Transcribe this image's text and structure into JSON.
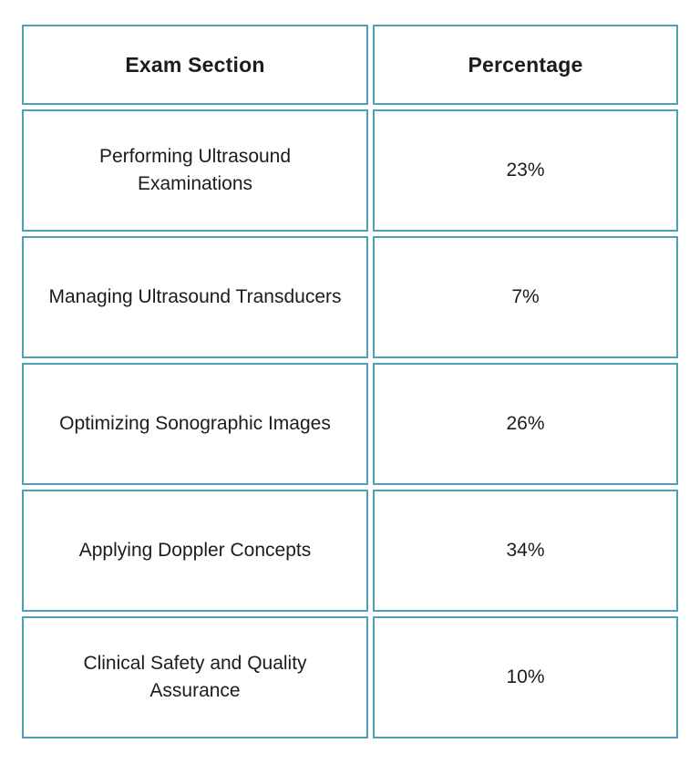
{
  "table": {
    "headers": [
      "Exam Section",
      "Percentage"
    ],
    "rows": [
      {
        "section": "Performing Ultrasound Examinations",
        "percentage": "23%"
      },
      {
        "section": "Managing Ultrasound Transducers",
        "percentage": "7%"
      },
      {
        "section": "Optimizing Sonographic Images",
        "percentage": "26%"
      },
      {
        "section": "Applying Doppler Concepts",
        "percentage": "34%"
      },
      {
        "section": "Clinical Safety and Quality Assurance",
        "percentage": "10%"
      }
    ]
  },
  "chart_data": {
    "type": "table",
    "title": "",
    "columns": [
      "Exam Section",
      "Percentage"
    ],
    "rows": [
      [
        "Performing Ultrasound Examinations",
        "23%"
      ],
      [
        "Managing Ultrasound Transducers",
        "7%"
      ],
      [
        "Optimizing Sonographic Images",
        "26%"
      ],
      [
        "Applying Doppler Concepts",
        "34%"
      ],
      [
        "Clinical Safety and Quality Assurance",
        "10%"
      ]
    ],
    "categories": [
      "Performing Ultrasound Examinations",
      "Managing Ultrasound Transducers",
      "Optimizing Sonographic Images",
      "Applying Doppler Concepts",
      "Clinical Safety and Quality Assurance"
    ],
    "values": [
      23,
      7,
      26,
      34,
      10
    ],
    "value_unit": "%"
  },
  "colors": {
    "cell_border": "#4e9fb8",
    "text": "#1c1c1c",
    "background": "#ffffff"
  }
}
